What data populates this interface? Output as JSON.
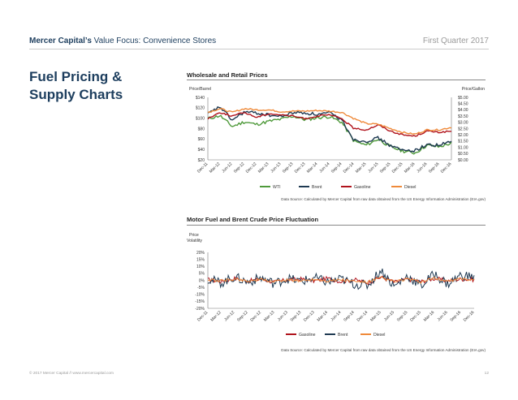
{
  "header": {
    "brand": "Mercer Capital’s",
    "subtitle": "Value Focus: Convenience Stores",
    "period": "First Quarter 2017"
  },
  "section_title": "Fuel Pricing & Supply Charts",
  "footer": {
    "copyright": "© 2017 Mercer Capital // www.mercercapital.com",
    "page": "12"
  },
  "colors": {
    "wti": "#4f9a3b",
    "brent": "#1f3a52",
    "gasoline": "#b0131c",
    "diesel": "#ef8a3a",
    "title": "#1d3e5e"
  },
  "chart_data": [
    {
      "type": "line",
      "title": "Wholesale and Retail Prices",
      "ylabel": "Price/Barrel",
      "y2label": "Price/Gallon",
      "ylim": [
        20,
        140
      ],
      "y2lim": [
        0,
        5
      ],
      "yticks": [
        "$20",
        "$40",
        "$60",
        "$80",
        "$100",
        "$120",
        "$140"
      ],
      "y2ticks": [
        "$0.00",
        "$0.50",
        "$1.00",
        "$1.50",
        "$2.00",
        "$2.50",
        "$3.00",
        "$3.50",
        "$4.00",
        "$4.50",
        "$5.00"
      ],
      "categories": [
        "Dec-11",
        "Mar-12",
        "Jun-12",
        "Sep-12",
        "Dec-12",
        "Mar-13",
        "Jun-13",
        "Sep-13",
        "Dec-13",
        "Mar-14",
        "Jun-14",
        "Sep-14",
        "Dec-14",
        "Mar-15",
        "Jun-15",
        "Sep-15",
        "Dec-15",
        "Mar-16",
        "Jun-16",
        "Sep-16",
        "Dec-16"
      ],
      "legend": "bottom",
      "series": [
        {
          "name": "WTI",
          "axis": "left",
          "values": [
            99,
            105,
            84,
            93,
            88,
            94,
            98,
            104,
            97,
            101,
            103,
            92,
            56,
            48,
            60,
            45,
            37,
            33,
            48,
            45,
            52
          ]
        },
        {
          "name": "Brent",
          "axis": "left",
          "values": [
            108,
            122,
            96,
            112,
            110,
            106,
            103,
            111,
            110,
            107,
            110,
            97,
            58,
            56,
            62,
            47,
            38,
            38,
            49,
            48,
            55
          ]
        },
        {
          "name": "Gasoline",
          "axis": "right",
          "values": [
            3.3,
            3.8,
            3.5,
            3.8,
            3.4,
            3.7,
            3.6,
            3.5,
            3.3,
            3.5,
            3.6,
            3.3,
            2.5,
            2.4,
            2.8,
            2.3,
            2.0,
            1.9,
            2.3,
            2.2,
            2.3
          ]
        },
        {
          "name": "Diesel",
          "axis": "right",
          "values": [
            3.8,
            4.1,
            3.8,
            4.1,
            4.0,
            4.0,
            3.85,
            3.9,
            3.9,
            3.95,
            3.9,
            3.8,
            3.3,
            2.9,
            2.85,
            2.5,
            2.2,
            2.05,
            2.4,
            2.4,
            2.6
          ]
        }
      ],
      "source": "Data Source: Calculated by Mercer Capital from raw data obtained from the US Energy Information Administration (EIA.gov)"
    },
    {
      "type": "line",
      "title": "Motor Fuel and Brent Crude Price Fluctuation",
      "ylabel": "Price Volatility",
      "ylim": [
        -20,
        20
      ],
      "yticks": [
        "20%",
        "15%",
        "10%",
        "5%",
        "0%",
        "-5%",
        "-10%",
        "-15%",
        "-20%"
      ],
      "categories": [
        "Dec-11",
        "Mar-12",
        "Jun-12",
        "Sep-12",
        "Dec-12",
        "Mar-13",
        "Jun-13",
        "Sep-13",
        "Dec-13",
        "Mar-14",
        "Jun-14",
        "Sep-14",
        "Dec-14",
        "Mar-15",
        "Jun-15",
        "Sep-15",
        "Dec-15",
        "Mar-16",
        "Jun-16",
        "Sep-16",
        "Dec-16"
      ],
      "legend": "bottom",
      "series": [
        {
          "name": "Gasoline",
          "values": [
            1,
            -2,
            3,
            -1,
            2,
            -3,
            1,
            2,
            -1,
            3,
            -2,
            1,
            -4,
            5,
            -3,
            2,
            -2,
            3,
            -1,
            2,
            1
          ]
        },
        {
          "name": "Brent",
          "values": [
            2,
            -4,
            5,
            -3,
            4,
            -5,
            3,
            -2,
            4,
            -3,
            2,
            -6,
            -8,
            16,
            -10,
            7,
            -9,
            10,
            -6,
            8,
            5
          ]
        },
        {
          "name": "Diesel",
          "values": [
            1,
            -1,
            2,
            -1,
            1,
            -2,
            1,
            -1,
            2,
            -1,
            1,
            -2,
            -3,
            4,
            -2,
            2,
            -3,
            3,
            -1,
            2,
            1
          ]
        }
      ],
      "source": "Data Source: Calculated by Mercer Capital from raw data obtained from the US Energy Information Administration (EIA.gov)"
    }
  ]
}
